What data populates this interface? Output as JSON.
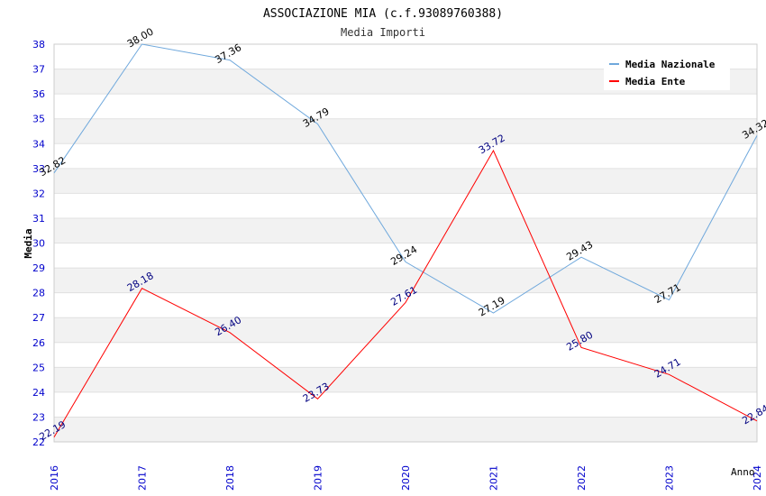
{
  "chart_data": {
    "type": "line",
    "title": "ASSOCIAZIONE MIA (c.f.93089760388)",
    "subtitle": "Media Importi",
    "xlabel": "Anno",
    "ylabel": "Media",
    "x": [
      "2016",
      "2017",
      "2018",
      "2019",
      "2020",
      "2021",
      "2022",
      "2023",
      "2024"
    ],
    "ylim": [
      22,
      38
    ],
    "yticks": [
      "22",
      "23",
      "24",
      "25",
      "26",
      "27",
      "28",
      "29",
      "30",
      "31",
      "32",
      "33",
      "34",
      "35",
      "36",
      "37",
      "38"
    ],
    "grid": true,
    "legend_position": "top-right",
    "series": [
      {
        "name": "Media Nazionale",
        "color": "#6fa8dc",
        "label_color": "#000000",
        "values": [
          32.82,
          38.0,
          37.36,
          34.79,
          29.24,
          27.19,
          29.43,
          27.71,
          34.32
        ],
        "labels": [
          "32.82",
          "38.00",
          "37.36",
          "34.79",
          "29.24",
          "27.19",
          "29.43",
          "27.71",
          "34.32"
        ]
      },
      {
        "name": "Media Ente",
        "color": "#ff0000",
        "label_color": "#000080",
        "values": [
          22.19,
          28.18,
          26.4,
          23.73,
          27.61,
          33.72,
          25.8,
          24.71,
          22.84
        ],
        "labels": [
          "22.19",
          "28.18",
          "26.40",
          "23.73",
          "27.61",
          "33.72",
          "25.80",
          "24.71",
          "22.84"
        ]
      }
    ]
  }
}
